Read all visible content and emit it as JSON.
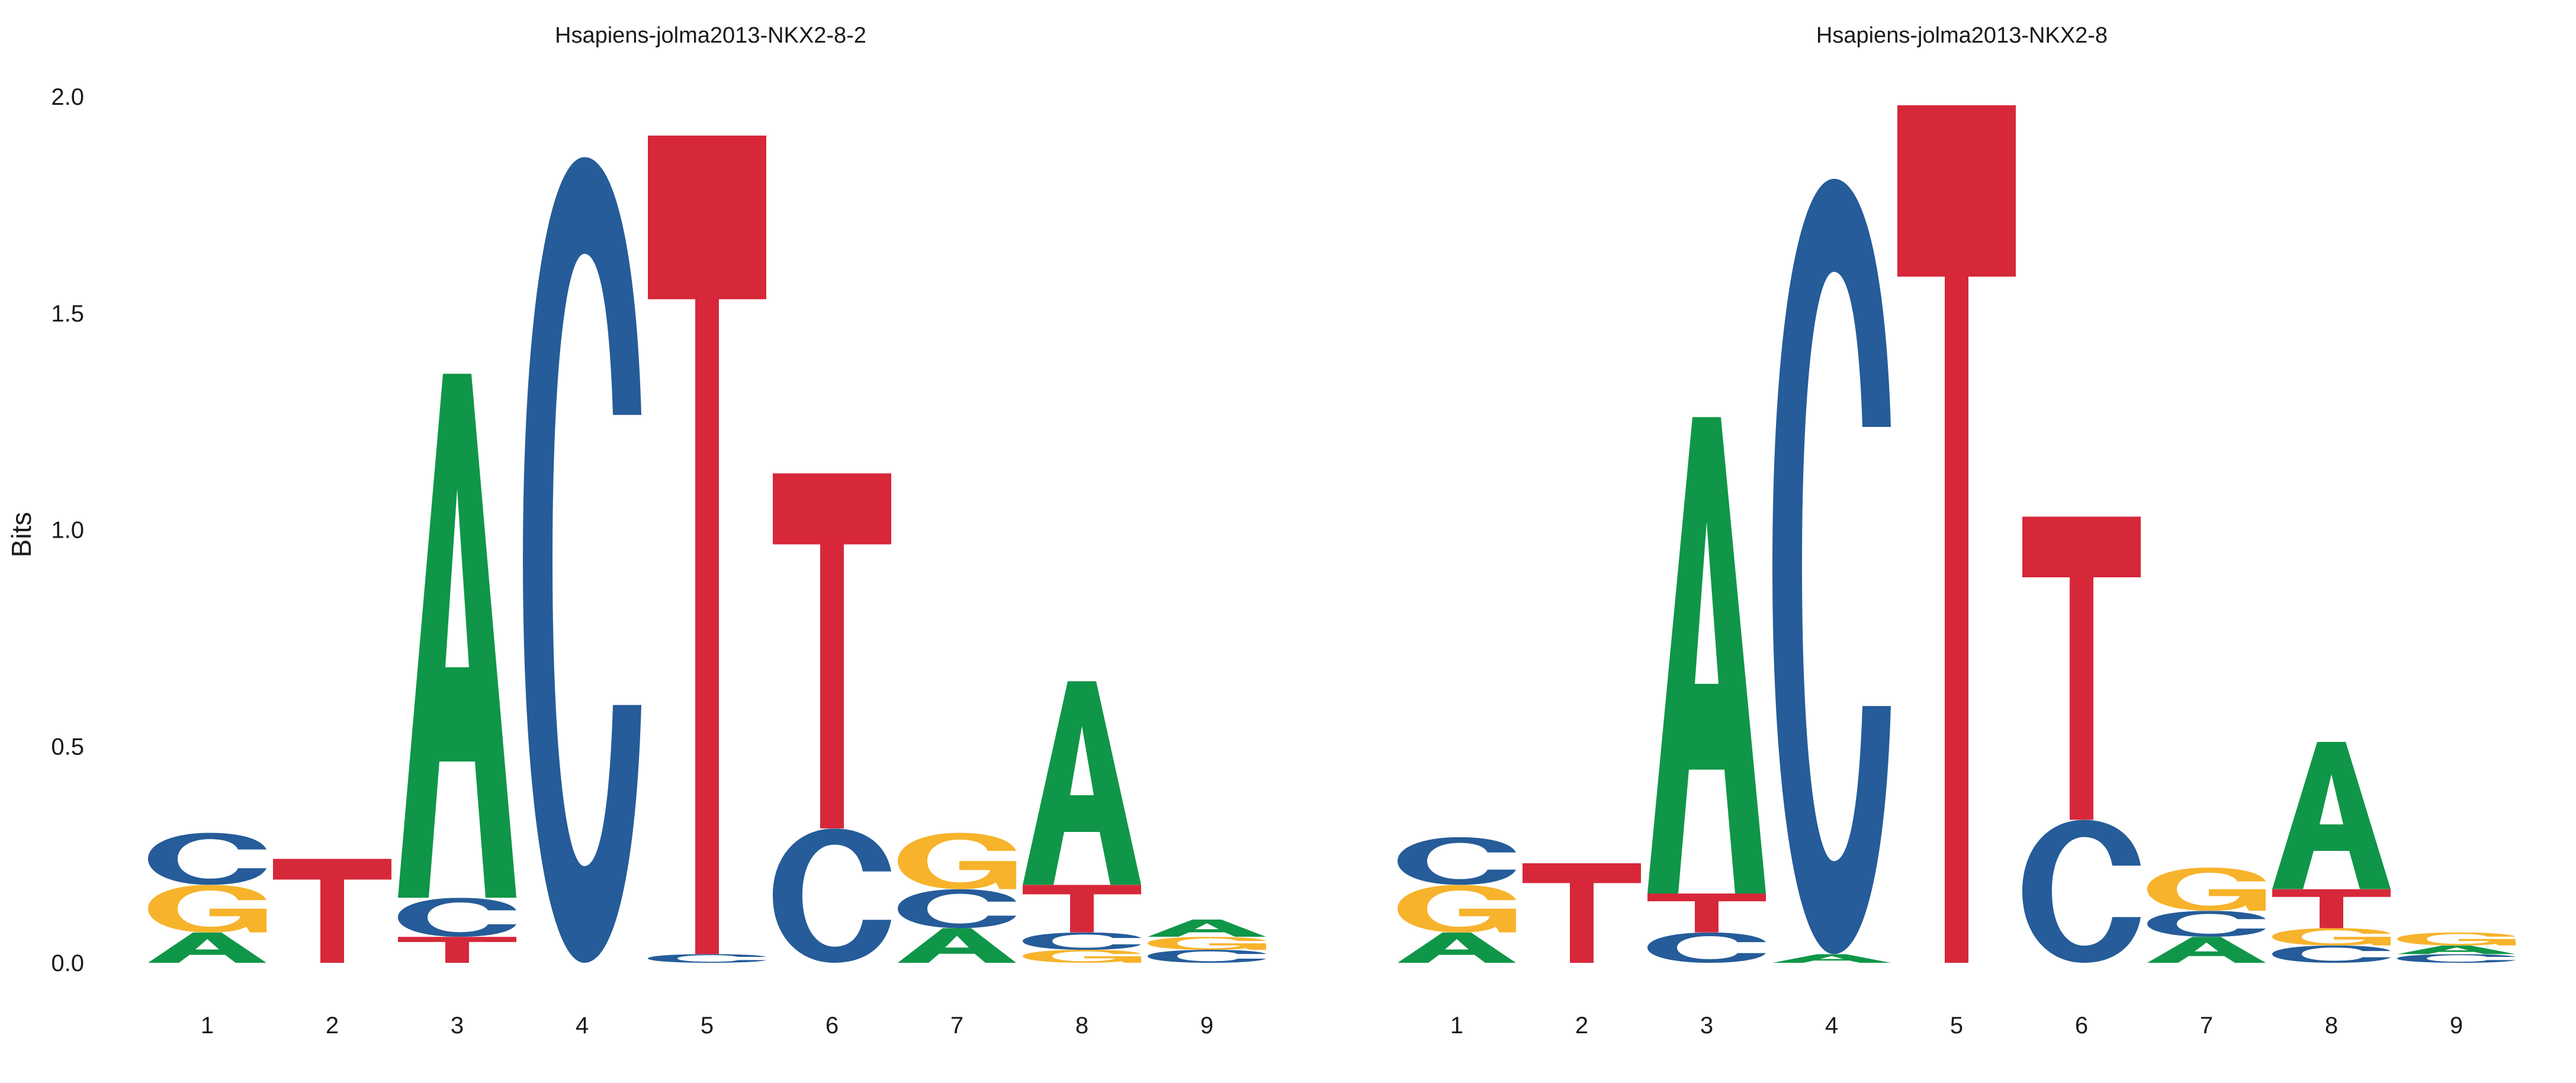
{
  "colors": {
    "A": "#109648",
    "C": "#255C99",
    "G": "#F7B32B",
    "T": "#D62839"
  },
  "chart_data": [
    {
      "type": "sequence-logo",
      "title": "Hsapiens-jolma2013-NKX2-8-2",
      "ylabel": "Bits",
      "ylim": [
        0,
        2
      ],
      "yticks": [
        "0.0",
        "0.5",
        "1.0",
        "1.5",
        "2.0"
      ],
      "xticks": [
        "1",
        "2",
        "3",
        "4",
        "5",
        "6",
        "7",
        "8",
        "9"
      ],
      "positions": [
        [
          {
            "letter": "A",
            "bits": 0.07
          },
          {
            "letter": "G",
            "bits": 0.11
          },
          {
            "letter": "C",
            "bits": 0.12
          }
        ],
        [
          {
            "letter": "T",
            "bits": 0.24
          }
        ],
        [
          {
            "letter": "T",
            "bits": 0.06
          },
          {
            "letter": "C",
            "bits": 0.09
          },
          {
            "letter": "A",
            "bits": 1.21
          }
        ],
        [
          {
            "letter": "C",
            "bits": 1.86
          }
        ],
        [
          {
            "letter": "C",
            "bits": 0.02
          },
          {
            "letter": "T",
            "bits": 1.89
          }
        ],
        [
          {
            "letter": "C",
            "bits": 0.31
          },
          {
            "letter": "T",
            "bits": 0.82
          }
        ],
        [
          {
            "letter": "A",
            "bits": 0.08
          },
          {
            "letter": "C",
            "bits": 0.09
          },
          {
            "letter": "G",
            "bits": 0.13
          }
        ],
        [
          {
            "letter": "G",
            "bits": 0.03
          },
          {
            "letter": "C",
            "bits": 0.04
          },
          {
            "letter": "T",
            "bits": 0.11
          },
          {
            "letter": "A",
            "bits": 0.47
          }
        ],
        [
          {
            "letter": "C",
            "bits": 0.03
          },
          {
            "letter": "G",
            "bits": 0.03
          },
          {
            "letter": "A",
            "bits": 0.04
          }
        ]
      ]
    },
    {
      "type": "sequence-logo",
      "title": "Hsapiens-jolma2013-NKX2-8",
      "ylabel": "",
      "ylim": [
        0,
        2
      ],
      "yticks": [],
      "xticks": [
        "1",
        "2",
        "3",
        "4",
        "5",
        "6",
        "7",
        "8",
        "9"
      ],
      "positions": [
        [
          {
            "letter": "A",
            "bits": 0.07
          },
          {
            "letter": "G",
            "bits": 0.11
          },
          {
            "letter": "C",
            "bits": 0.11
          }
        ],
        [
          {
            "letter": "T",
            "bits": 0.23
          }
        ],
        [
          {
            "letter": "C",
            "bits": 0.07
          },
          {
            "letter": "T",
            "bits": 0.09
          },
          {
            "letter": "A",
            "bits": 1.1
          }
        ],
        [
          {
            "letter": "A",
            "bits": 0.02
          },
          {
            "letter": "C",
            "bits": 1.79
          }
        ],
        [
          {
            "letter": "T",
            "bits": 1.98
          }
        ],
        [
          {
            "letter": "C",
            "bits": 0.33
          },
          {
            "letter": "T",
            "bits": 0.7
          }
        ],
        [
          {
            "letter": "A",
            "bits": 0.06
          },
          {
            "letter": "C",
            "bits": 0.06
          },
          {
            "letter": "G",
            "bits": 0.1
          }
        ],
        [
          {
            "letter": "C",
            "bits": 0.04
          },
          {
            "letter": "G",
            "bits": 0.04
          },
          {
            "letter": "T",
            "bits": 0.09
          },
          {
            "letter": "A",
            "bits": 0.34
          }
        ],
        [
          {
            "letter": "C",
            "bits": 0.02
          },
          {
            "letter": "A",
            "bits": 0.02
          },
          {
            "letter": "G",
            "bits": 0.03
          }
        ]
      ]
    }
  ]
}
